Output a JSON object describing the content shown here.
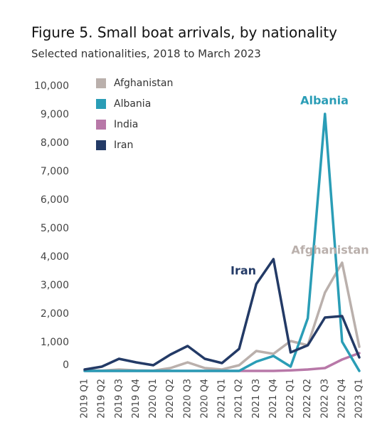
{
  "chart_data": {
    "type": "line",
    "title": "Figure 5. Small boat arrivals, by nationality",
    "subtitle": "Selected nationalities, 2018 to March 2023",
    "categories": [
      "2019 Q1",
      "2019 Q2",
      "2019 Q3",
      "2019 Q4",
      "2020 Q1",
      "2020 Q2",
      "2020 Q3",
      "2020 Q4",
      "2021 Q1",
      "2021 Q2",
      "2021 Q3",
      "2021 Q4",
      "2022 Q1",
      "2022 Q2",
      "2022 Q3",
      "2022 Q4",
      "2023 Q1"
    ],
    "series": [
      {
        "name": "Afghanistan",
        "color": "#bab0ac",
        "values": [
          20,
          10,
          50,
          20,
          10,
          100,
          300,
          100,
          50,
          200,
          700,
          600,
          1050,
          900,
          2750,
          3800,
          850
        ]
      },
      {
        "name": "Albania",
        "color": "#2a9db6",
        "values": [
          0,
          0,
          0,
          0,
          0,
          0,
          0,
          0,
          0,
          0,
          325,
          525,
          150,
          1850,
          9025,
          1025,
          0
        ]
      },
      {
        "name": "India",
        "color": "#b878a8",
        "values": [
          0,
          0,
          0,
          0,
          0,
          0,
          0,
          0,
          0,
          0,
          0,
          0,
          20,
          50,
          100,
          400,
          625
        ]
      },
      {
        "name": "Iran",
        "color": "#233a66",
        "values": [
          50,
          150,
          425,
          300,
          200,
          575,
          875,
          425,
          275,
          775,
          3050,
          3925,
          650,
          900,
          1875,
          1925,
          475
        ]
      }
    ],
    "ylim": [
      0,
      10000
    ],
    "yticks": [
      0,
      {
        "value": 1000,
        "label": "1,000"
      },
      {
        "value": 2000,
        "label": "2,000"
      },
      {
        "value": 3000,
        "label": "3,000"
      },
      {
        "value": 4000,
        "label": "4,000"
      },
      {
        "value": 5000,
        "label": "5,000"
      },
      {
        "value": 6000,
        "label": "6,000"
      },
      {
        "value": 7000,
        "label": "7,000"
      },
      {
        "value": 8000,
        "label": "8,000"
      },
      {
        "value": 9000,
        "label": "9,000"
      },
      {
        "value": 10000,
        "label": "10,000"
      }
    ],
    "grid": false
  }
}
